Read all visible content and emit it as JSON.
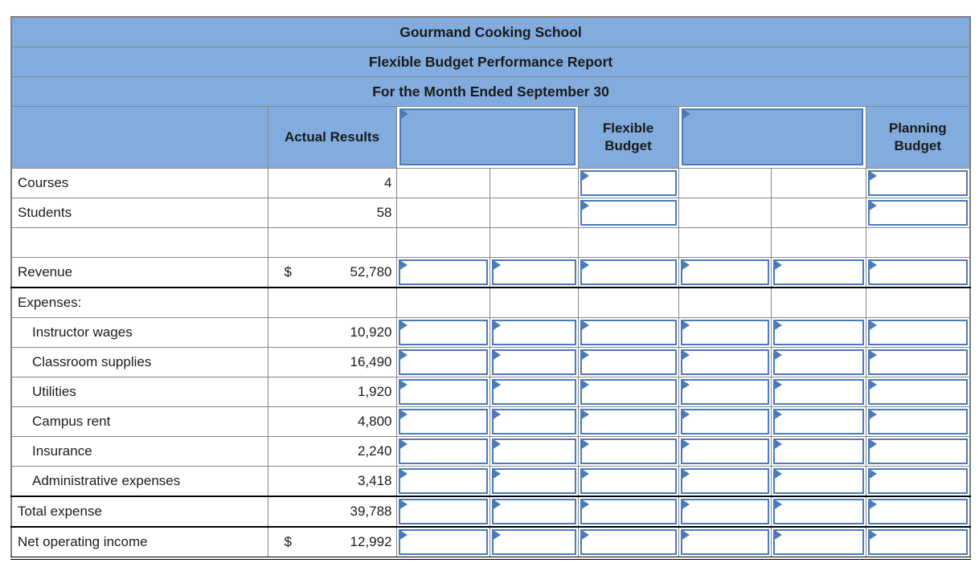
{
  "report": {
    "title": "Gourmand Cooking School",
    "subtitle": "Flexible Budget Performance Report",
    "period": "For the Month Ended September 30"
  },
  "columns": {
    "actual": "Actual Results",
    "flexible": "Flexible Budget",
    "planning": "Planning Budget"
  },
  "header_inputs": {
    "left_value": "",
    "right_value": ""
  },
  "colors": {
    "header_fill": "#82ACDE",
    "input_border": "#4A7AB8",
    "grid_line": "#868686",
    "emphasis_line": "#000000"
  },
  "rows": [
    {
      "label": "Courses",
      "indent": false,
      "dollar": "",
      "actual": "4",
      "inputs": [
        "flex",
        "plan"
      ],
      "bottom": "gray"
    },
    {
      "label": "Students",
      "indent": false,
      "dollar": "",
      "actual": "58",
      "inputs": [
        "flex",
        "plan"
      ],
      "bottom": "gray"
    },
    {
      "label": "",
      "indent": false,
      "dollar": "",
      "actual": "",
      "inputs": [],
      "bottom": "gray"
    },
    {
      "label": "Revenue",
      "indent": false,
      "dollar": "$",
      "actual": "52,780",
      "inputs": [
        "c3",
        "c4",
        "flex",
        "c6",
        "c7",
        "plan"
      ],
      "bottom": "black"
    },
    {
      "label": "Expenses:",
      "indent": false,
      "dollar": "",
      "actual": "",
      "inputs": [],
      "bottom": "gray"
    },
    {
      "label": "Instructor wages",
      "indent": true,
      "dollar": "",
      "actual": "10,920",
      "inputs": [
        "c3",
        "c4",
        "flex",
        "c6",
        "c7",
        "plan"
      ],
      "bottom": "gray"
    },
    {
      "label": "Classroom supplies",
      "indent": true,
      "dollar": "",
      "actual": "16,490",
      "inputs": [
        "c3",
        "c4",
        "flex",
        "c6",
        "c7",
        "plan"
      ],
      "bottom": "gray"
    },
    {
      "label": "Utilities",
      "indent": true,
      "dollar": "",
      "actual": "1,920",
      "inputs": [
        "c3",
        "c4",
        "flex",
        "c6",
        "c7",
        "plan"
      ],
      "bottom": "gray"
    },
    {
      "label": "Campus rent",
      "indent": true,
      "dollar": "",
      "actual": "4,800",
      "inputs": [
        "c3",
        "c4",
        "flex",
        "c6",
        "c7",
        "plan"
      ],
      "bottom": "gray"
    },
    {
      "label": "Insurance",
      "indent": true,
      "dollar": "",
      "actual": "2,240",
      "inputs": [
        "c3",
        "c4",
        "flex",
        "c6",
        "c7",
        "plan"
      ],
      "bottom": "gray"
    },
    {
      "label": "Administrative expenses",
      "indent": true,
      "dollar": "",
      "actual": "3,418",
      "inputs": [
        "c3",
        "c4",
        "flex",
        "c6",
        "c7",
        "plan"
      ],
      "bottom": "black"
    },
    {
      "label": "Total expense",
      "indent": false,
      "dollar": "",
      "actual": "39,788",
      "inputs": [
        "c3",
        "c4",
        "flex",
        "c6",
        "c7",
        "plan"
      ],
      "bottom": "black"
    },
    {
      "label": "Net operating income",
      "indent": false,
      "dollar": "$",
      "actual": "12,992",
      "inputs": [
        "c3",
        "c4",
        "flex",
        "c6",
        "c7",
        "plan"
      ],
      "bottom": "double"
    }
  ]
}
